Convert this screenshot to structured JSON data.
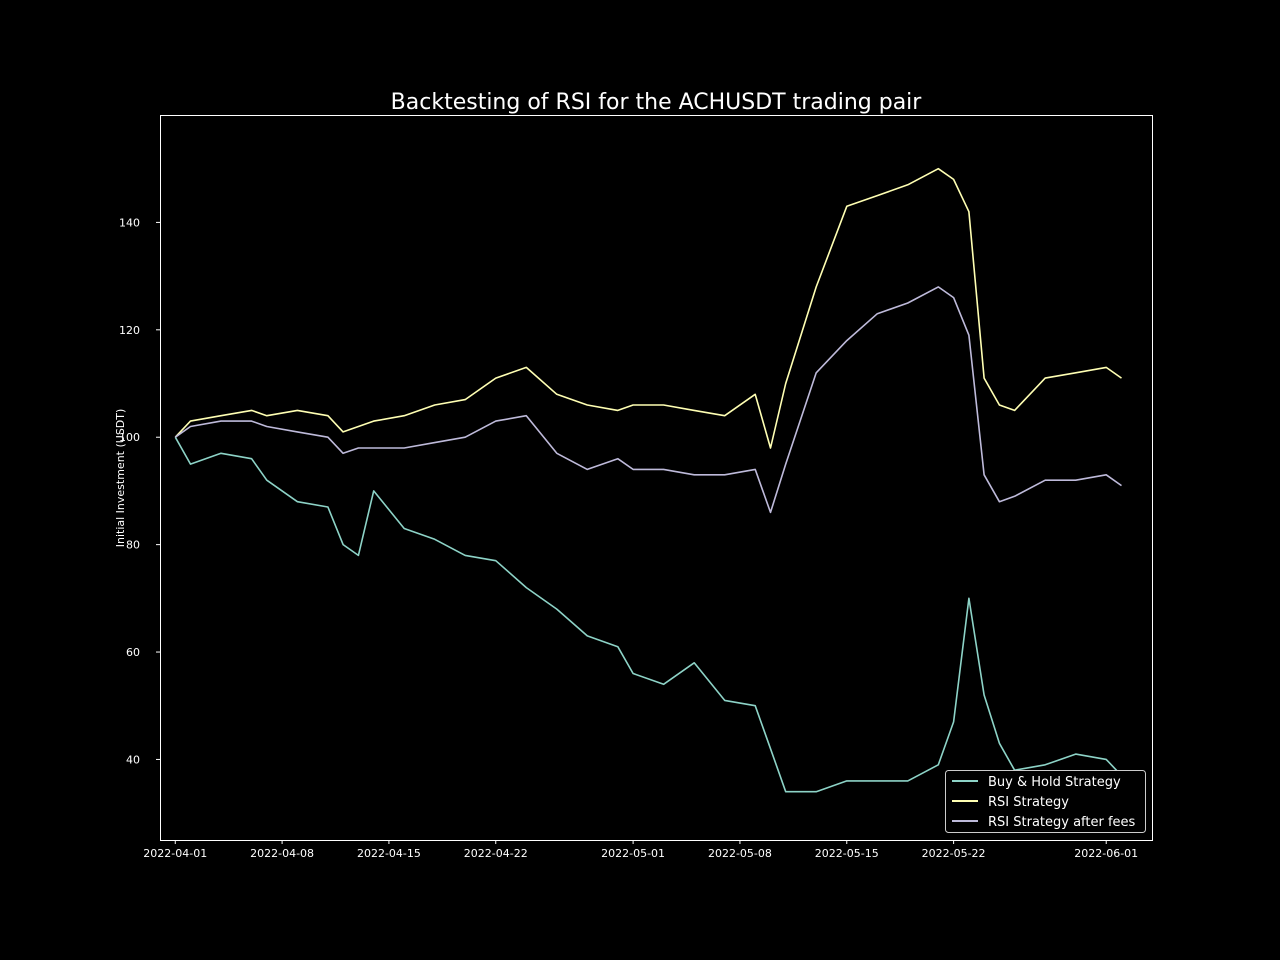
{
  "chart_data": {
    "type": "line",
    "title": "Backtesting of RSI for the ACHUSDT trading pair",
    "xlabel": "",
    "ylabel": "Initial Investment (USDT)",
    "x_ticks": [
      "2022-04-01",
      "2022-04-08",
      "2022-04-15",
      "2022-04-22",
      "2022-05-01",
      "2022-05-08",
      "2022-05-15",
      "2022-05-22",
      "2022-06-01"
    ],
    "y_ticks": [
      40,
      60,
      80,
      100,
      120,
      140
    ],
    "xlim": [
      "2022-03-31",
      "2022-06-04"
    ],
    "ylim": [
      25,
      160
    ],
    "grid": false,
    "legend_position": "lower-right",
    "background": "#000000",
    "x": [
      "2022-04-01",
      "2022-04-02",
      "2022-04-04",
      "2022-04-06",
      "2022-04-07",
      "2022-04-09",
      "2022-04-11",
      "2022-04-12",
      "2022-04-13",
      "2022-04-14",
      "2022-04-16",
      "2022-04-18",
      "2022-04-20",
      "2022-04-22",
      "2022-04-24",
      "2022-04-26",
      "2022-04-28",
      "2022-04-30",
      "2022-05-01",
      "2022-05-03",
      "2022-05-05",
      "2022-05-07",
      "2022-05-09",
      "2022-05-10",
      "2022-05-11",
      "2022-05-13",
      "2022-05-15",
      "2022-05-17",
      "2022-05-19",
      "2022-05-21",
      "2022-05-22",
      "2022-05-23",
      "2022-05-24",
      "2022-05-25",
      "2022-05-26",
      "2022-05-28",
      "2022-05-30",
      "2022-06-01",
      "2022-06-02"
    ],
    "series": [
      {
        "name": "Buy & Hold Strategy",
        "color": "#8dd3c7",
        "values": [
          100,
          95,
          97,
          96,
          92,
          88,
          87,
          80,
          78,
          90,
          83,
          81,
          78,
          77,
          72,
          68,
          63,
          61,
          56,
          54,
          58,
          51,
          50,
          42,
          34,
          34,
          36,
          36,
          36,
          39,
          47,
          70,
          52,
          43,
          38,
          39,
          41,
          40,
          37
        ]
      },
      {
        "name": "RSI Strategy",
        "color": "#ffffb3",
        "values": [
          100,
          103,
          104,
          105,
          104,
          105,
          104,
          101,
          102,
          103,
          104,
          106,
          107,
          111,
          113,
          108,
          106,
          105,
          106,
          106,
          105,
          104,
          108,
          98,
          110,
          128,
          143,
          145,
          147,
          150,
          148,
          142,
          111,
          106,
          105,
          111,
          112,
          113,
          111
        ]
      },
      {
        "name": "RSI Strategy after fees",
        "color": "#bebada",
        "values": [
          100,
          102,
          103,
          103,
          102,
          101,
          100,
          97,
          98,
          98,
          98,
          99,
          100,
          103,
          104,
          97,
          94,
          96,
          94,
          94,
          93,
          93,
          94,
          86,
          95,
          112,
          118,
          123,
          125,
          128,
          126,
          119,
          93,
          88,
          89,
          92,
          92,
          93,
          91
        ]
      }
    ]
  }
}
